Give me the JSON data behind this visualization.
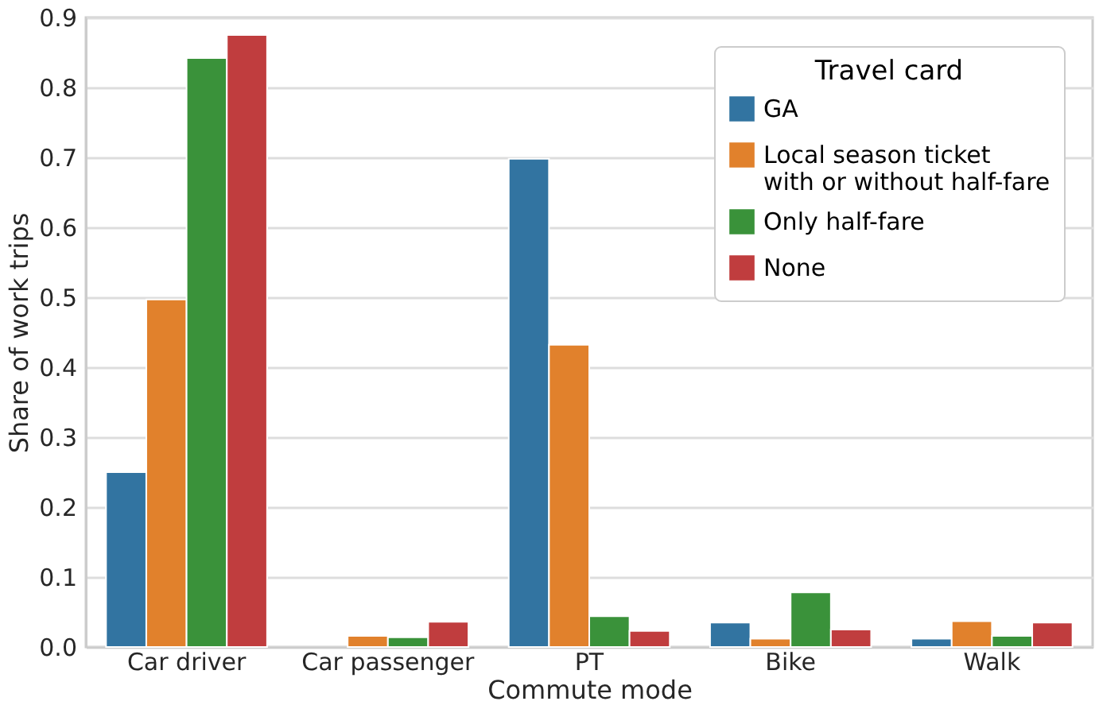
{
  "chart_data": {
    "type": "bar",
    "xlabel": "Commute mode",
    "ylabel": "Share of work trips",
    "legend_title": "Travel card",
    "categories": [
      "Car driver",
      "Car passenger",
      "PT",
      "Bike",
      "Walk"
    ],
    "series": [
      {
        "name": "GA",
        "color": "#3274a1",
        "values": [
          0.25,
          null,
          0.698,
          0.035,
          0.012
        ]
      },
      {
        "name": "Local season ticket\nwith or without half-fare",
        "color": "#e1812c",
        "values": [
          0.497,
          0.016,
          0.432,
          0.012,
          0.037
        ]
      },
      {
        "name": "Only half-fare",
        "color": "#3a923a",
        "values": [
          0.842,
          0.014,
          0.044,
          0.078,
          0.016
        ]
      },
      {
        "name": "None",
        "color": "#c03d3e",
        "values": [
          0.875,
          0.036,
          0.023,
          0.025,
          0.035
        ]
      }
    ],
    "ylim": [
      0,
      0.9
    ],
    "yticks": [
      {
        "value": 0,
        "label": "0.0"
      },
      0.1,
      0.2,
      0.3,
      0.4,
      0.5,
      0.6,
      0.7,
      0.8,
      0.9
    ],
    "grid": "y",
    "legend": "top right"
  }
}
